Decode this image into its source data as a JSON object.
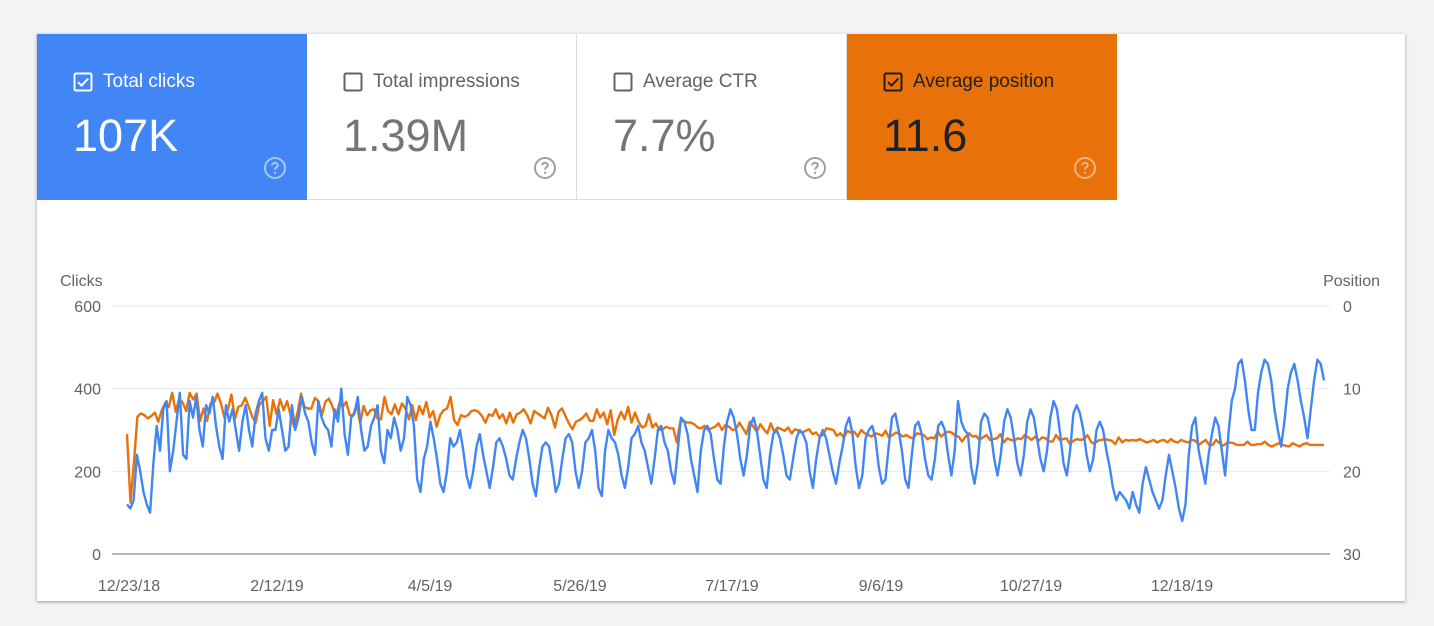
{
  "tiles": [
    {
      "id": "clicks",
      "label": "Total clicks",
      "value": "107K",
      "checked": true,
      "color": "#4285f4"
    },
    {
      "id": "impressions",
      "label": "Total impressions",
      "value": "1.39M",
      "checked": false,
      "color": "#ffffff"
    },
    {
      "id": "ctr",
      "label": "Average CTR",
      "value": "7.7%",
      "checked": false,
      "color": "#ffffff"
    },
    {
      "id": "position",
      "label": "Average position",
      "value": "11.6",
      "checked": true,
      "color": "#e8710a"
    }
  ],
  "icons": {
    "checkbox_checked": "check-box-icon",
    "checkbox_empty": "check-box-outline-icon",
    "help": "help-circle-icon"
  },
  "chart_data": {
    "type": "line",
    "left_axis_title": "Clicks",
    "right_axis_title": "Position",
    "left_ticks": [
      "600",
      "400",
      "200",
      "0"
    ],
    "right_ticks": [
      "0",
      "10",
      "20",
      "30"
    ],
    "left_range": [
      0,
      600
    ],
    "right_range": [
      0,
      30
    ],
    "right_axis_inverted": true,
    "x_ticks": [
      "12/23/18",
      "2/12/19",
      "4/5/19",
      "5/26/19",
      "7/17/19",
      "9/6/19",
      "10/27/19",
      "12/18/19"
    ],
    "grid": true,
    "series": [
      {
        "name": "Total clicks",
        "color": "#4285f4",
        "axis": "left",
        "values": [
          120,
          110,
          130,
          240,
          200,
          150,
          120,
          100,
          220,
          310,
          250,
          350,
          370,
          200,
          250,
          320,
          390,
          240,
          230,
          370,
          330,
          380,
          300,
          260,
          360,
          340,
          380,
          310,
          260,
          230,
          360,
          320,
          350,
          300,
          250,
          320,
          360,
          300,
          260,
          340,
          370,
          390,
          280,
          250,
          300,
          300,
          350,
          300,
          250,
          260,
          360,
          300,
          330,
          380,
          340,
          320,
          270,
          240,
          370,
          330,
          310,
          300,
          260,
          350,
          320,
          400,
          290,
          240,
          330,
          340,
          380,
          300,
          250,
          260,
          310,
          330,
          360,
          250,
          220,
          300,
          280,
          330,
          300,
          250,
          280,
          380,
          360,
          310,
          180,
          150,
          230,
          260,
          320,
          280,
          230,
          170,
          150,
          200,
          280,
          260,
          270,
          300,
          250,
          190,
          160,
          200,
          260,
          290,
          240,
          200,
          160,
          210,
          270,
          280,
          260,
          230,
          190,
          180,
          230,
          270,
          300,
          280,
          230,
          170,
          140,
          210,
          260,
          270,
          260,
          210,
          150,
          170,
          230,
          280,
          290,
          270,
          200,
          160,
          200,
          270,
          280,
          300,
          250,
          160,
          140,
          250,
          300,
          280,
          270,
          240,
          190,
          160,
          210,
          280,
          290,
          310,
          270,
          250,
          210,
          170,
          230,
          300,
          310,
          270,
          250,
          200,
          170,
          250,
          330,
          320,
          290,
          230,
          190,
          150,
          250,
          300,
          310,
          290,
          230,
          180,
          170,
          260,
          320,
          350,
          330,
          290,
          230,
          190,
          240,
          310,
          330,
          300,
          240,
          180,
          160,
          240,
          290,
          300,
          280,
          240,
          190,
          180,
          230,
          280,
          300,
          290,
          270,
          200,
          160,
          230,
          280,
          300,
          280,
          240,
          200,
          170,
          220,
          260,
          310,
          330,
          290,
          210,
          160,
          190,
          280,
          300,
          310,
          280,
          210,
          170,
          180,
          260,
          330,
          340,
          300,
          250,
          180,
          160,
          240,
          310,
          320,
          290,
          230,
          190,
          180,
          230,
          310,
          320,
          300,
          240,
          190,
          250,
          370,
          320,
          300,
          290,
          210,
          170,
          220,
          320,
          340,
          330,
          290,
          230,
          190,
          240,
          320,
          350,
          330,
          280,
          220,
          190,
          240,
          320,
          350,
          330,
          280,
          230,
          200,
          250,
          330,
          370,
          350,
          290,
          220,
          190,
          250,
          340,
          360,
          340,
          300,
          240,
          200,
          230,
          300,
          320,
          300,
          250,
          210,
          160,
          130,
          150,
          140,
          130,
          110,
          150,
          120,
          100,
          170,
          210,
          180,
          150,
          130,
          110,
          130,
          190,
          240,
          200,
          160,
          110,
          80,
          120,
          240,
          310,
          330,
          250,
          210,
          170,
          240,
          290,
          330,
          310,
          250,
          190,
          290,
          370,
          400,
          460,
          470,
          420,
          350,
          300,
          300,
          390,
          440,
          470,
          460,
          420,
          350,
          300,
          260,
          320,
          400,
          440,
          460,
          420,
          370,
          330,
          280,
          350,
          420,
          470,
          460,
          420
        ]
      },
      {
        "name": "Average position",
        "color": "#e8710a",
        "axis": "right",
        "values": [
          15.5,
          23.8,
          18.8,
          13.4,
          13.0,
          13.2,
          13.6,
          13.3,
          12.9,
          14.0,
          12.6,
          11.7,
          12.2,
          10.5,
          12.8,
          11.2,
          11.7,
          12.7,
          10.5,
          11.3,
          10.6,
          13.9,
          12.4,
          13.9,
          11.8,
          11.7,
          10.6,
          11.8,
          13.5,
          12.5,
          10.7,
          13.7,
          12.2,
          12.0,
          11.1,
          12.2,
          13.4,
          14.1,
          12.0,
          11.5,
          11.0,
          14.5,
          11.4,
          13.1,
          11.3,
          12.6,
          11.5,
          13.2,
          14.6,
          12.9,
          10.6,
          12.2,
          12.4,
          12.4,
          11.1,
          11.5,
          13.2,
          11.6,
          11.2,
          12.1,
          13.5,
          11.8,
          12.2,
          11.6,
          13.2,
          13.2,
          11.9,
          14.2,
          12.1,
          13.2,
          12.6,
          12.5,
          13.6,
          13.7,
          11.0,
          12.7,
          13.1,
          11.9,
          13.1,
          11.8,
          12.4,
          13.7,
          12.0,
          13.8,
          12.1,
          13.1,
          11.6,
          13.5,
          12.7,
          14.6,
          13.2,
          12.6,
          12.4,
          11.0,
          13.8,
          14.4,
          13.2,
          13.4,
          13.2,
          12.7,
          12.6,
          12.8,
          13.3,
          14.1,
          13.1,
          13.3,
          12.5,
          13.6,
          13.1,
          14.2,
          12.9,
          14.1,
          13.1,
          12.9,
          12.5,
          13.2,
          14.2,
          12.7,
          13.0,
          13.3,
          13.6,
          12.3,
          13.2,
          14.7,
          12.8,
          12.4,
          13.3,
          14.2,
          14.9,
          14.0,
          13.8,
          13.5,
          13.0,
          13.9,
          13.9,
          12.5,
          13.5,
          12.9,
          14.3,
          12.6,
          15.6,
          13.8,
          12.8,
          13.7,
          12.2,
          14.1,
          12.9,
          14.0,
          14.7,
          14.5,
          13.1,
          14.7,
          14.2,
          15.0,
          14.9,
          14.6,
          14.8,
          14.8,
          16.5,
          14.0,
          13.9,
          14.1,
          14.1,
          14.3,
          14.7,
          14.8,
          14.5,
          15.0,
          14.8,
          14.6,
          14.2,
          15.0,
          14.4,
          14.6,
          15.0,
          14.9,
          14.1,
          14.8,
          15.5,
          14.0,
          14.6,
          15.2,
          14.3,
          14.9,
          15.4,
          14.2,
          15.2,
          14.7,
          14.9,
          15.1,
          14.7,
          15.4,
          14.9,
          15.1,
          15.3,
          15.1,
          14.9,
          15.5,
          15.3,
          15.8,
          15.6,
          14.8,
          14.9,
          15.0,
          15.7,
          15.4,
          15.9,
          15.1,
          15.3,
          15.2,
          15.8,
          15.0,
          15.4,
          15.6,
          15.8,
          15.4,
          15.5,
          15.7,
          15.1,
          15.9,
          15.6,
          15.3,
          15.5,
          15.8,
          15.6,
          15.9,
          16.0,
          15.4,
          15.5,
          15.6,
          16.1,
          15.9,
          16.0,
          15.2,
          15.8,
          15.4,
          15.2,
          15.3,
          15.7,
          15.8,
          16.4,
          15.8,
          15.4,
          15.8,
          15.7,
          16.2,
          15.9,
          15.6,
          16.2,
          16.1,
          16.0,
          15.5,
          16.5,
          16.0,
          16.2,
          16.3,
          16.0,
          16.1,
          15.6,
          15.9,
          16.2,
          15.8,
          16.3,
          15.9,
          16.0,
          16.4,
          16.4,
          15.6,
          16.2,
          16.1,
          16.0,
          16.7,
          16.3,
          16.1,
          16.2,
          16.1,
          15.6,
          16.4,
          16.7,
          16.3,
          16.2,
          16.1,
          16.2,
          16.3,
          16.7,
          15.9,
          16.5,
          16.2,
          16.3,
          16.2,
          16.3,
          16.1,
          16.3,
          16.5,
          16.4,
          16.2,
          16.5,
          16.3,
          16.2,
          16.5,
          16.1,
          16.4,
          16.5,
          16.2,
          16.4,
          16.5,
          16.2,
          16.3,
          16.8,
          16.5,
          16.2,
          16.8,
          16.8,
          16.2,
          16.6,
          16.9,
          16.6,
          16.5,
          16.6,
          16.8,
          16.8,
          16.8,
          16.4,
          16.8,
          16.8,
          16.7,
          16.7,
          16.4,
          16.8,
          17.0,
          16.8,
          16.6,
          16.8,
          16.9,
          17.0,
          16.6,
          16.8,
          17.0,
          16.7,
          16.6,
          16.8,
          16.8,
          16.8,
          16.8,
          16.8
        ]
      }
    ]
  }
}
